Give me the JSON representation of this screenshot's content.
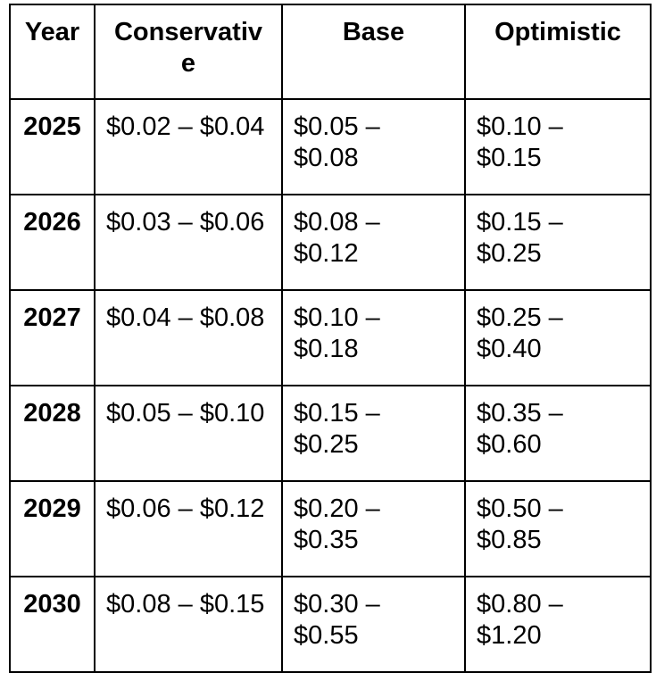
{
  "chart_data": {
    "type": "table",
    "title": "",
    "columns": [
      "Year",
      "Conservative",
      "Base",
      "Optimistic"
    ],
    "categories": [
      "2025",
      "2026",
      "2027",
      "2028",
      "2029",
      "2030"
    ],
    "rows": [
      [
        "2025",
        "$0.02 – $0.04",
        "$0.05 – $0.08",
        "$0.10 – $0.15"
      ],
      [
        "2026",
        "$0.03 – $0.06",
        "$0.08 – $0.12",
        "$0.15 – $0.25"
      ],
      [
        "2027",
        "$0.04 – $0.08",
        "$0.10 – $0.18",
        "$0.25 – $0.40"
      ],
      [
        "2028",
        "$0.05 – $0.10",
        "$0.15 – $0.25",
        "$0.35 – $0.60"
      ],
      [
        "2029",
        "$0.06 – $0.12",
        "$0.20 – $0.35",
        "$0.50 – $0.85"
      ],
      [
        "2030",
        "$0.08 – $0.15",
        "$0.30 – $0.55",
        "$0.80 – $1.20"
      ]
    ],
    "series": [
      {
        "name": "Conservative",
        "low": [
          0.02,
          0.03,
          0.04,
          0.05,
          0.06,
          0.08
        ],
        "high": [
          0.04,
          0.06,
          0.08,
          0.1,
          0.12,
          0.15
        ]
      },
      {
        "name": "Base",
        "low": [
          0.05,
          0.08,
          0.1,
          0.15,
          0.2,
          0.3
        ],
        "high": [
          0.08,
          0.12,
          0.18,
          0.25,
          0.35,
          0.55
        ]
      },
      {
        "name": "Optimistic",
        "low": [
          0.1,
          0.15,
          0.25,
          0.35,
          0.5,
          0.8
        ],
        "high": [
          0.15,
          0.25,
          0.4,
          0.6,
          0.85,
          1.2
        ]
      }
    ]
  },
  "table": {
    "headers": {
      "year": "Year",
      "conservative": "Conservativ\ne",
      "base": "Base",
      "optimistic": "Optimistic"
    },
    "rows": [
      {
        "year": "2025",
        "conservative": "$0.02 – $0.04",
        "base": "$0.05 –\n$0.08",
        "optimistic": "$0.10 –\n$0.15"
      },
      {
        "year": "2026",
        "conservative": "$0.03 – $0.06",
        "base": "$0.08 –\n$0.12",
        "optimistic": "$0.15 –\n$0.25"
      },
      {
        "year": "2027",
        "conservative": "$0.04 – $0.08",
        "base": "$0.10 –\n$0.18",
        "optimistic": "$0.25 –\n$0.40"
      },
      {
        "year": "2028",
        "conservative": "$0.05 – $0.10",
        "base": "$0.15 –\n$0.25",
        "optimistic": "$0.35 –\n$0.60"
      },
      {
        "year": "2029",
        "conservative": "$0.06 – $0.12",
        "base": "$0.20 –\n$0.35",
        "optimistic": "$0.50 –\n$0.85"
      },
      {
        "year": "2030",
        "conservative": "$0.08 – $0.15",
        "base": "$0.30 –\n$0.55",
        "optimistic": "$0.80 –\n$1.20"
      }
    ]
  },
  "colors": {
    "border": "#000000",
    "text": "#000000",
    "background": "#ffffff"
  }
}
